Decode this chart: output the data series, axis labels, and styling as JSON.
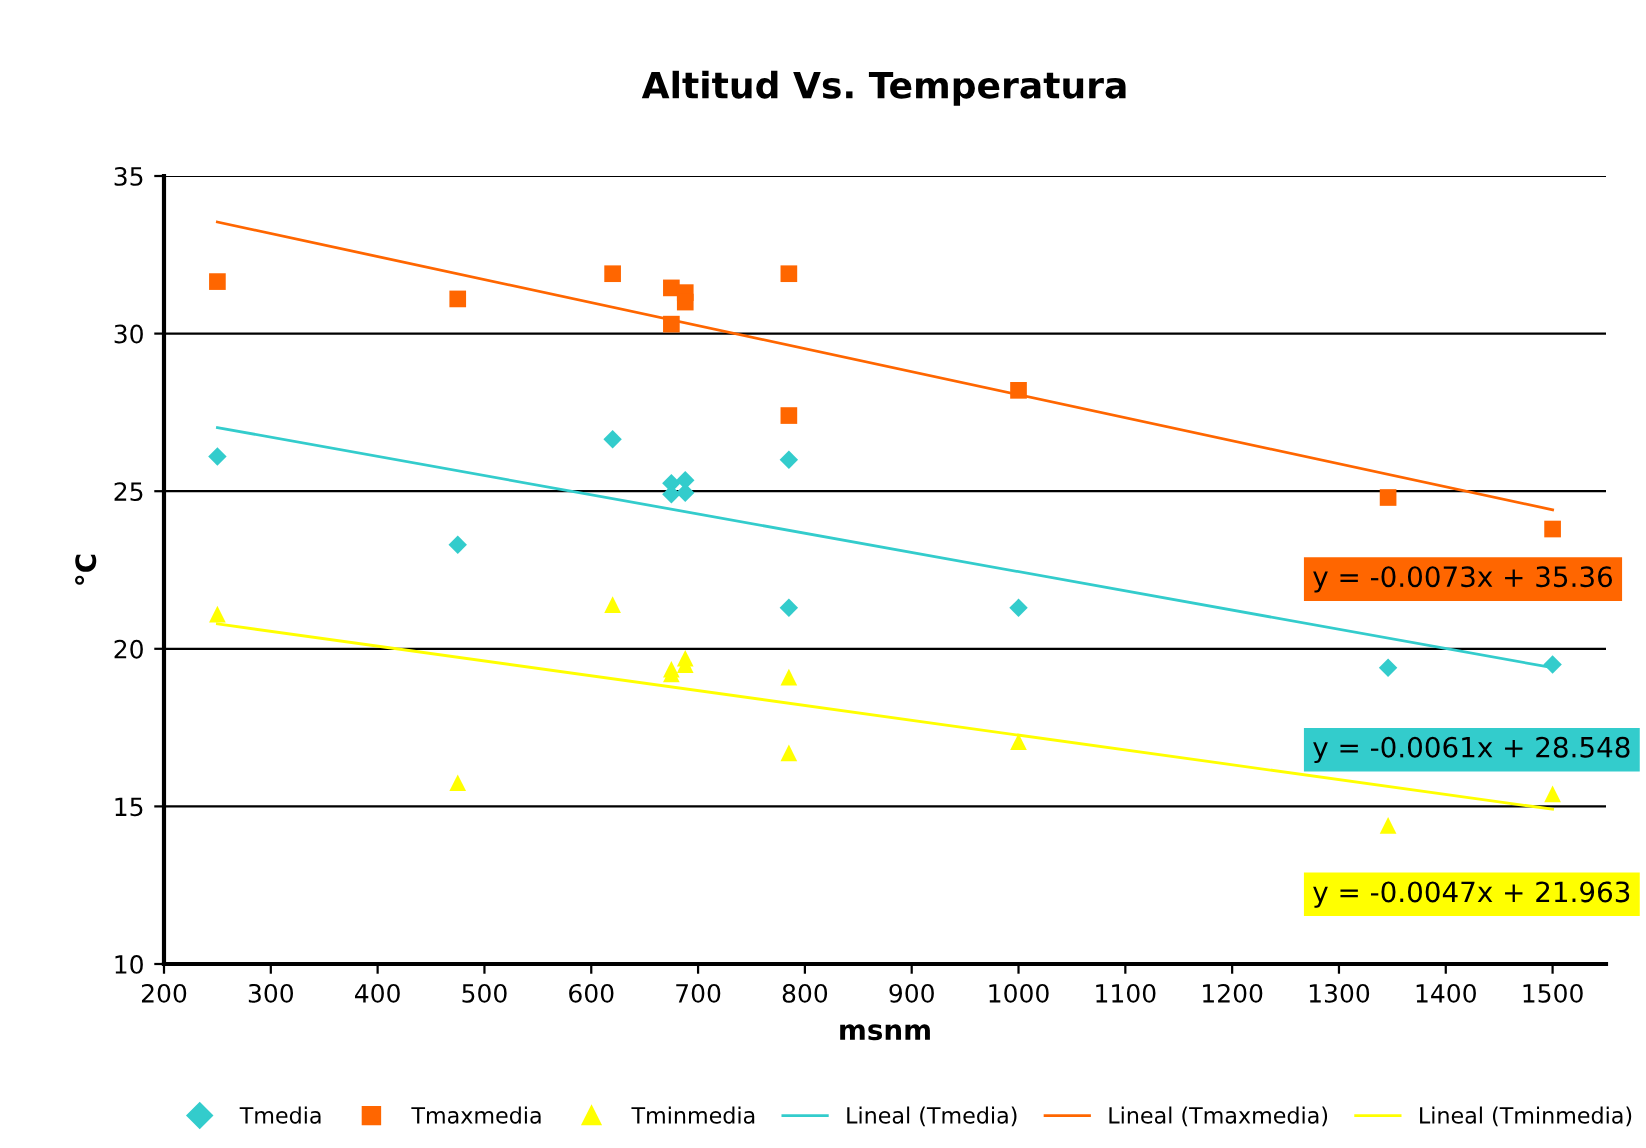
{
  "chart_data": {
    "type": "scatter",
    "title": "Altitud Vs. Temperatura",
    "xlabel": "msnm",
    "ylabel": "°C",
    "xlim": [
      200,
      1550
    ],
    "xticks": [
      200,
      300,
      400,
      500,
      600,
      700,
      800,
      900,
      1000,
      1100,
      1200,
      1300,
      1400,
      1500
    ],
    "ylim": [
      10,
      35
    ],
    "yticks": [
      10,
      15,
      20,
      25,
      30,
      35
    ],
    "grid": "y",
    "legend": "bottom",
    "series": [
      {
        "name": "Tmedia",
        "color": "#33cccc",
        "marker": "diamond",
        "x": [
          250,
          475,
          620,
          675,
          675,
          688,
          688,
          785,
          785,
          1000,
          1346,
          1500
        ],
        "values": [
          26.1,
          23.3,
          26.65,
          25.25,
          24.9,
          25.35,
          24.95,
          26.0,
          21.3,
          21.3,
          19.4,
          19.5
        ]
      },
      {
        "name": "Tmaxmedia",
        "color": "#ff6600",
        "marker": "square",
        "x": [
          250,
          475,
          620,
          675,
          675,
          688,
          688,
          785,
          785,
          1000,
          1346,
          1500
        ],
        "values": [
          31.65,
          31.1,
          31.9,
          31.45,
          30.3,
          31.3,
          31.0,
          31.9,
          27.4,
          28.2,
          24.8,
          23.8
        ]
      },
      {
        "name": "Tminmedia",
        "color": "#ffff00",
        "marker": "triangle",
        "x": [
          250,
          475,
          620,
          675,
          675,
          688,
          688,
          785,
          785,
          1000,
          1346,
          1500
        ],
        "values": [
          21.1,
          15.75,
          21.4,
          19.35,
          19.2,
          19.7,
          19.5,
          19.1,
          16.7,
          17.05,
          14.4,
          15.4
        ]
      },
      {
        "name": "Lineal (Tmedia)",
        "type": "line",
        "color": "#33cccc",
        "marker": "none",
        "x": [
          250,
          1500
        ],
        "values": [
          27.02,
          19.4
        ]
      },
      {
        "name": "Lineal (Tmaxmedia)",
        "type": "line",
        "color": "#ff6600",
        "marker": "none",
        "x": [
          250,
          1500
        ],
        "values": [
          33.54,
          24.41
        ]
      },
      {
        "name": "Lineal (Tminmedia)",
        "type": "line",
        "color": "#ffff00",
        "marker": "none",
        "x": [
          250,
          1500
        ],
        "values": [
          20.79,
          14.91
        ]
      }
    ],
    "annotations": [
      "y = -0.0061x + 28.548",
      "y = -0.0073x + 35.36",
      "y = -0.0047x + 21.963"
    ]
  }
}
